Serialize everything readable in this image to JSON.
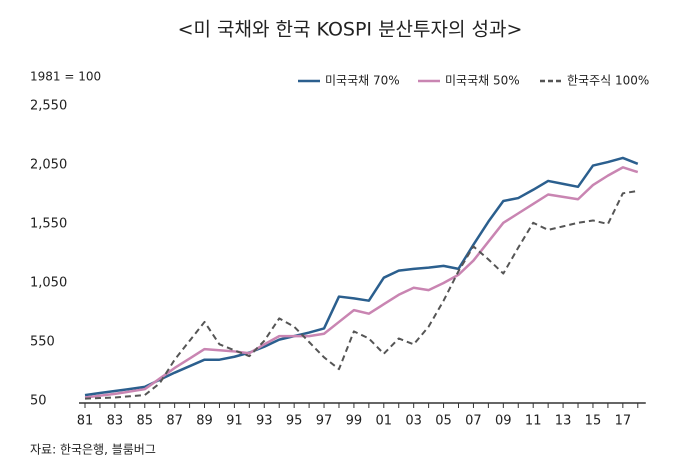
{
  "chart_data": {
    "type": "line",
    "title": "<미 국채와 한국 KOSPI 분산투자의 성과>",
    "annotation": "1981 = 100",
    "source": "자료: 한국은행, 블룸버그",
    "categories": [
      "81",
      null,
      "83",
      null,
      "85",
      null,
      "87",
      null,
      "89",
      null,
      "91",
      null,
      "93",
      null,
      "95",
      null,
      "97",
      null,
      "99",
      null,
      "01",
      null,
      "03",
      null,
      "05",
      null,
      "07",
      null,
      "09",
      null,
      "11",
      null,
      "13",
      null,
      "15",
      null,
      "17",
      null
    ],
    "series": [
      {
        "name": "미국국채 70%",
        "color": "#2b5f8e",
        "dash": false,
        "values": [
          100,
          118,
          135,
          152,
          170,
          230,
          290,
          345,
          400,
          400,
          425,
          460,
          510,
          570,
          600,
          630,
          665,
          935,
          920,
          900,
          1095,
          1155,
          1170,
          1180,
          1195,
          1170,
          1375,
          1570,
          1745,
          1770,
          1840,
          1915,
          1890,
          1865,
          2045,
          2075,
          2110,
          2060
        ]
      },
      {
        "name": "미국국채 50%",
        "color": "#c985b2",
        "dash": false,
        "values": [
          80,
          95,
          110,
          130,
          150,
          240,
          330,
          410,
          490,
          480,
          470,
          455,
          530,
          600,
          600,
          600,
          620,
          720,
          820,
          790,
          870,
          950,
          1010,
          990,
          1050,
          1120,
          1240,
          1400,
          1560,
          1640,
          1720,
          1800,
          1780,
          1760,
          1880,
          1960,
          2030,
          1990
        ]
      },
      {
        "name": "한국주식 100%",
        "color": "#555555",
        "dash": true,
        "values": [
          70,
          75,
          80,
          90,
          100,
          200,
          400,
          560,
          720,
          530,
          480,
          430,
          560,
          750,
          680,
          550,
          420,
          320,
          640,
          580,
          450,
          580,
          530,
          680,
          900,
          1150,
          1360,
          1250,
          1130,
          1350,
          1560,
          1500,
          1530,
          1560,
          1580,
          1550,
          1810,
          1830
        ]
      }
    ],
    "ylim": [
      50,
      2550
    ],
    "yticks": [
      50,
      550,
      {
        "value": 1050,
        "label": "1,050"
      },
      {
        "value": 1550,
        "label": "1,550"
      },
      {
        "value": 2050,
        "label": "2,050"
      },
      {
        "value": 2550,
        "label": "2,550"
      }
    ],
    "grid": false,
    "legend": "top-right"
  }
}
